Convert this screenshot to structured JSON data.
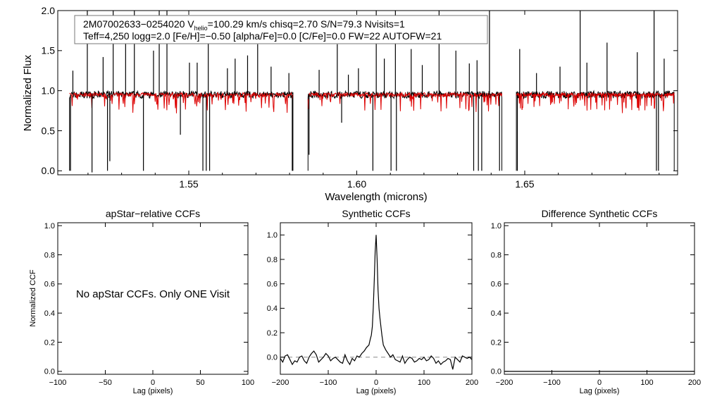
{
  "colors": {
    "model": "#dd0000",
    "observed": "#000000",
    "zero_line": "#888888"
  },
  "chart_data": [
    {
      "type": "line",
      "title": "",
      "xlabel": "Wavelength (microns)",
      "ylabel": "Normalized Flux",
      "xlim": [
        1.511,
        1.6955
      ],
      "ylim": [
        -0.05,
        2.0
      ],
      "xticks": [
        "1.55",
        "1.60",
        "1.65"
      ],
      "yticks": [
        "0.0",
        "0.5",
        "1.0",
        "1.5",
        "2.0"
      ],
      "annotation": {
        "line1_pre": "2M07002633−0254020  V",
        "line1_sub": "helio",
        "line1_post": "=100.29 km/s  chisq=2.70  S/N=79.3  Nvisits=1",
        "line2": "Teff=4,250 logg=2.0 [Fe/H]=−0.50 [alpha/Fe]=0.0 [C/Fe]=0.0 FW=22 AUTOFW=21"
      },
      "detector_chunks": [
        [
          1.5145,
          1.581
        ],
        [
          1.5855,
          1.6432
        ],
        [
          1.6475,
          1.6945
        ]
      ],
      "emission_spikes": [
        {
          "x": 1.5155,
          "y": 1.25
        },
        {
          "x": 1.5198,
          "y": 2.0
        },
        {
          "x": 1.5245,
          "y": 1.42
        },
        {
          "x": 1.5275,
          "y": 2.0
        },
        {
          "x": 1.5312,
          "y": 1.62
        },
        {
          "x": 1.5338,
          "y": 2.0
        },
        {
          "x": 1.5395,
          "y": 1.5
        },
        {
          "x": 1.5412,
          "y": 2.0
        },
        {
          "x": 1.5435,
          "y": 2.0
        },
        {
          "x": 1.5502,
          "y": 1.35
        },
        {
          "x": 1.5525,
          "y": 1.35
        },
        {
          "x": 1.5558,
          "y": 1.8
        },
        {
          "x": 1.5615,
          "y": 1.28
        },
        {
          "x": 1.5638,
          "y": 1.4
        },
        {
          "x": 1.5675,
          "y": 1.44
        },
        {
          "x": 1.5705,
          "y": 1.58
        },
        {
          "x": 1.5745,
          "y": 1.3
        },
        {
          "x": 1.5798,
          "y": 1.22
        },
        {
          "x": 1.5888,
          "y": 1.26
        },
        {
          "x": 1.5942,
          "y": 1.58
        },
        {
          "x": 1.5975,
          "y": 1.2
        },
        {
          "x": 1.6005,
          "y": 1.28
        },
        {
          "x": 1.6058,
          "y": 2.0
        },
        {
          "x": 1.6082,
          "y": 1.4
        },
        {
          "x": 1.6115,
          "y": 2.0
        },
        {
          "x": 1.6162,
          "y": 1.52
        },
        {
          "x": 1.6195,
          "y": 1.32
        },
        {
          "x": 1.6245,
          "y": 2.0
        },
        {
          "x": 1.6295,
          "y": 1.5
        },
        {
          "x": 1.6335,
          "y": 1.34
        },
        {
          "x": 1.6358,
          "y": 1.38
        },
        {
          "x": 1.6395,
          "y": 2.0
        },
        {
          "x": 1.6485,
          "y": 1.52
        },
        {
          "x": 1.6535,
          "y": 1.22
        },
        {
          "x": 1.6605,
          "y": 1.3
        },
        {
          "x": 1.6665,
          "y": 2.0
        },
        {
          "x": 1.6685,
          "y": 1.35
        },
        {
          "x": 1.6745,
          "y": 1.6
        },
        {
          "x": 1.6835,
          "y": 1.48
        },
        {
          "x": 1.6885,
          "y": 2.0
        },
        {
          "x": 1.6915,
          "y": 1.4
        }
      ],
      "absorption_spikes": [
        {
          "x": 1.5148,
          "y": 0.0
        },
        {
          "x": 1.5212,
          "y": -0.02
        },
        {
          "x": 1.5258,
          "y": 0.0
        },
        {
          "x": 1.5265,
          "y": 0.12
        },
        {
          "x": 1.5365,
          "y": 0.0
        },
        {
          "x": 1.5475,
          "y": 0.45
        },
        {
          "x": 1.5542,
          "y": 0.0
        },
        {
          "x": 1.5552,
          "y": 0.0
        },
        {
          "x": 1.5562,
          "y": 0.0
        },
        {
          "x": 1.5808,
          "y": 0.0
        },
        {
          "x": 1.5858,
          "y": 0.2
        },
        {
          "x": 1.5955,
          "y": 0.6
        },
        {
          "x": 1.6048,
          "y": 0.0
        },
        {
          "x": 1.6102,
          "y": 0.0
        },
        {
          "x": 1.6118,
          "y": 0.0
        },
        {
          "x": 1.6348,
          "y": 0.0
        },
        {
          "x": 1.6362,
          "y": 0.0
        },
        {
          "x": 1.6372,
          "y": 0.0
        },
        {
          "x": 1.6425,
          "y": 0.0
        },
        {
          "x": 1.6478,
          "y": 0.0
        },
        {
          "x": 1.6892,
          "y": 0.0
        },
        {
          "x": 1.6898,
          "y": 0.0
        }
      ]
    },
    {
      "type": "line",
      "title": "apStar−relative CCFs",
      "xlabel": "Lag (pixels)",
      "ylabel": "Normalized CCF",
      "xlim": [
        -100,
        100
      ],
      "ylim": [
        -0.02,
        1.02
      ],
      "xticks": [
        "−100",
        "−50",
        "0",
        "50",
        "100"
      ],
      "yticks": [
        "0.0",
        "0.2",
        "0.4",
        "0.6",
        "0.8",
        "1.0"
      ],
      "message": "No apStar CCFs.  Only ONE Visit",
      "series": []
    },
    {
      "type": "line",
      "title": "Synthetic CCFs",
      "xlabel": "Lag (pixels)",
      "ylabel": "",
      "xlim": [
        -200,
        200
      ],
      "ylim": [
        -0.14,
        1.1
      ],
      "xticks": [
        "−200",
        "−100",
        "0",
        "100",
        "200"
      ],
      "yticks": [
        "0.0",
        "0.2",
        "0.4",
        "0.6",
        "0.8",
        "1.0"
      ],
      "reference_line_y": 0.0,
      "x": [
        -200,
        -195,
        -190,
        -185,
        -180,
        -175,
        -170,
        -165,
        -160,
        -155,
        -150,
        -145,
        -140,
        -135,
        -130,
        -125,
        -120,
        -115,
        -110,
        -105,
        -100,
        -95,
        -90,
        -85,
        -80,
        -75,
        -70,
        -65,
        -60,
        -55,
        -50,
        -45,
        -40,
        -35,
        -30,
        -25,
        -20,
        -15,
        -12,
        -10,
        -8,
        -6,
        -4,
        -2,
        0,
        2,
        4,
        6,
        8,
        10,
        12,
        15,
        20,
        25,
        30,
        35,
        40,
        45,
        50,
        55,
        60,
        65,
        70,
        75,
        80,
        85,
        90,
        95,
        100,
        105,
        110,
        115,
        120,
        125,
        130,
        135,
        140,
        145,
        150,
        155,
        160,
        165,
        170,
        175,
        180,
        185,
        190,
        195,
        200
      ],
      "y": [
        -0.01,
        -0.04,
        0.01,
        0.02,
        -0.02,
        -0.06,
        -0.03,
        -0.04,
        0.0,
        0.01,
        -0.03,
        -0.05,
        0.0,
        0.03,
        0.05,
        0.02,
        -0.04,
        -0.02,
        0.0,
        0.03,
        0.01,
        -0.03,
        -0.01,
        0.0,
        -0.02,
        -0.04,
        -0.05,
        0.02,
        -0.03,
        -0.06,
        -0.01,
        -0.03,
        0.01,
        0.0,
        0.03,
        0.05,
        0.08,
        0.1,
        0.15,
        0.18,
        0.25,
        0.4,
        0.62,
        0.86,
        1.0,
        0.8,
        0.55,
        0.4,
        0.32,
        0.25,
        0.18,
        0.1,
        0.06,
        0.03,
        0.0,
        0.02,
        -0.02,
        -0.03,
        -0.04,
        0.01,
        -0.05,
        -0.02,
        0.0,
        -0.01,
        -0.04,
        -0.03,
        -0.01,
        -0.02,
        0.0,
        -0.03,
        -0.02,
        0.01,
        -0.01,
        -0.05,
        -0.03,
        -0.06,
        -0.04,
        -0.03,
        -0.01,
        -0.02,
        -0.1,
        0.0,
        -0.02,
        -0.04,
        0.01,
        0.0,
        -0.01,
        0.0,
        -0.02
      ]
    },
    {
      "type": "line",
      "title": "Difference Synthetic CCFs",
      "xlabel": "Lag (pixels)",
      "ylabel": "",
      "xlim": [
        -200,
        200
      ],
      "ylim": [
        -0.02,
        1.02
      ],
      "xticks": [
        "−200",
        "−100",
        "0",
        "100",
        "200"
      ],
      "yticks": [
        "0.0",
        "0.2",
        "0.4",
        "0.6",
        "0.8",
        "1.0"
      ],
      "x": [
        -200,
        200
      ],
      "y": [
        0.0,
        0.0
      ]
    }
  ]
}
